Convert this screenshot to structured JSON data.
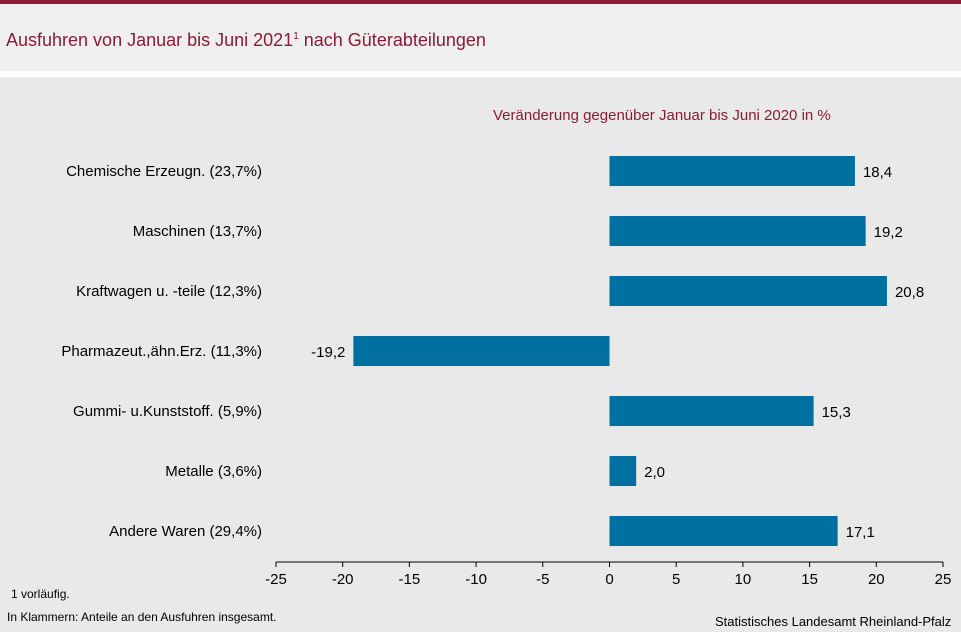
{
  "header": {
    "title_main": "Ausfuhren von Januar bis Juni 2021",
    "title_sup": "1",
    "title_tail": " nach Güterabteilungen"
  },
  "chart_data": {
    "type": "bar",
    "orientation": "horizontal",
    "subtitle": "Veränderung gegenüber Januar bis Juni 2020 in %",
    "categories": [
      "Chemische Erzeugn. (23,7%)",
      "Maschinen (13,7%)",
      "Kraftwagen u. -teile (12,3%)",
      "Pharmazeut.,ähn.Erz. (11,3%)",
      "Gummi- u.Kunststoff. (5,9%)",
      "Metalle (3,6%)",
      "Andere Waren (29,4%)"
    ],
    "values": [
      18.4,
      19.2,
      20.8,
      -19.2,
      15.3,
      2.0,
      17.1
    ],
    "value_labels": [
      "18,4",
      "19,2",
      "20,8",
      "-19,2",
      "15,3",
      "2,0",
      "17,1"
    ],
    "xlim": [
      -25,
      25
    ],
    "xticks": [
      -25,
      -20,
      -15,
      -10,
      -5,
      0,
      5,
      10,
      15,
      20,
      25
    ],
    "bar_color": "#0070a0",
    "grid": false
  },
  "footer": {
    "footnote": "1 vorläufig.",
    "note": "In Klammern: Anteile an den Ausfuhren insgesamt.",
    "source": "Statistisches Landesamt Rheinland-Pfalz"
  }
}
